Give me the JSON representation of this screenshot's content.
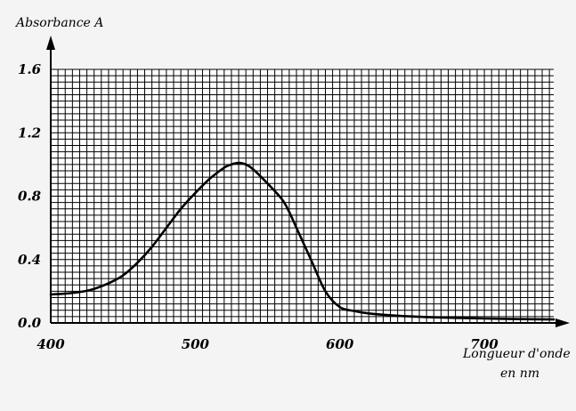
{
  "chart_data": {
    "type": "line",
    "title": "",
    "ylabel": "Absorbance A",
    "xlabel_line1": "Longueur d'onde",
    "xlabel_line2": "en nm",
    "xlim": [
      400,
      748
    ],
    "ylim": [
      0,
      1.6
    ],
    "x_ticks": [
      400,
      500,
      600,
      700
    ],
    "x_tick_labels": [
      "400",
      "500",
      "600",
      "700"
    ],
    "y_ticks": [
      0.0,
      0.4,
      0.8,
      1.2,
      1.6
    ],
    "y_tick_labels": [
      "0.0",
      "0.4",
      "0.8",
      "1.2",
      "1.6"
    ],
    "grid": true,
    "grid_step_x": 5,
    "grid_step_y": 0.04,
    "series": [
      {
        "x": [
          400,
          410,
          420,
          430,
          440,
          450,
          460,
          470,
          480,
          490,
          500,
          510,
          520,
          525,
          530,
          535,
          540,
          550,
          560,
          565,
          570,
          580,
          590,
          600,
          610,
          620,
          640,
          660,
          680,
          700,
          720,
          748
        ],
        "y": [
          0.18,
          0.185,
          0.195,
          0.215,
          0.25,
          0.3,
          0.38,
          0.48,
          0.6,
          0.72,
          0.82,
          0.91,
          0.98,
          1.0,
          1.01,
          1.0,
          0.97,
          0.88,
          0.78,
          0.7,
          0.6,
          0.4,
          0.2,
          0.1,
          0.075,
          0.06,
          0.045,
          0.037,
          0.032,
          0.028,
          0.025,
          0.022
        ]
      }
    ]
  }
}
